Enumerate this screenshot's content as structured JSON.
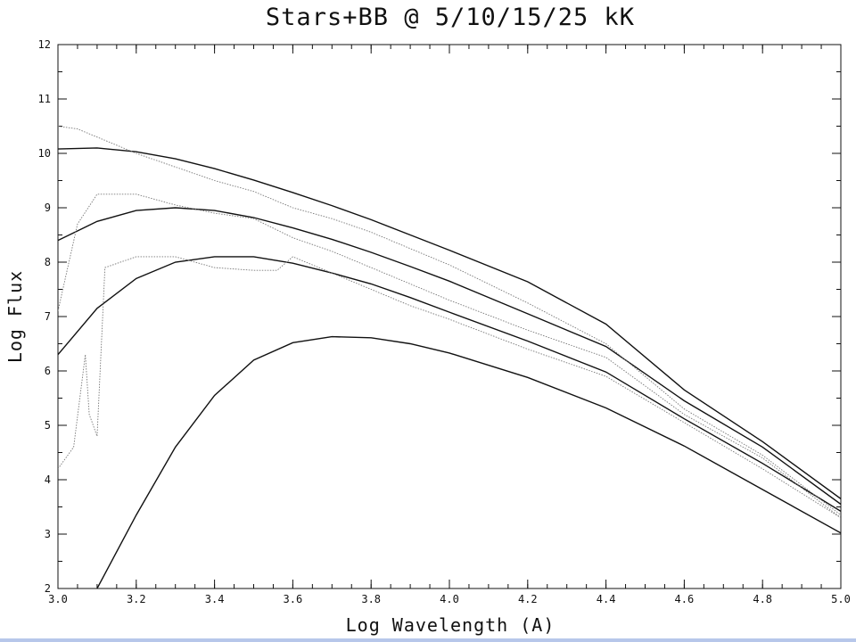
{
  "chart_data": {
    "type": "line",
    "title": "Stars+BB @ 5/10/15/25 kK",
    "xlabel": "Log Wavelength (A)",
    "ylabel": "Log Flux",
    "xlim": [
      3.0,
      5.0
    ],
    "ylim": [
      2,
      12
    ],
    "x_ticks": [
      "3.0",
      "3.2",
      "3.4",
      "3.6",
      "3.8",
      "4.0",
      "4.2",
      "4.4",
      "4.6",
      "4.8",
      "5.0"
    ],
    "y_ticks": [
      "2",
      "3",
      "4",
      "5",
      "6",
      "7",
      "8",
      "9",
      "10",
      "11",
      "12"
    ],
    "grid": false,
    "legend": "none",
    "series": [
      {
        "style": "blackbody",
        "x": [
          3.0,
          3.1,
          3.2,
          3.3,
          3.4,
          3.5,
          3.6,
          3.7,
          3.8,
          3.9,
          4.0,
          4.2,
          4.4,
          4.6,
          4.8,
          5.0
        ],
        "y": [
          10.08,
          10.1,
          10.03,
          9.9,
          9.72,
          9.51,
          9.28,
          9.04,
          8.78,
          8.5,
          8.22,
          7.64,
          6.86,
          5.65,
          4.7,
          3.65
        ]
      },
      {
        "style": "blackbody",
        "x": [
          3.0,
          3.1,
          3.2,
          3.3,
          3.4,
          3.5,
          3.6,
          3.7,
          3.8,
          3.9,
          4.0,
          4.2,
          4.4,
          4.6,
          4.8,
          5.0
        ],
        "y": [
          8.4,
          8.75,
          8.95,
          9.0,
          8.95,
          8.82,
          8.63,
          8.42,
          8.18,
          7.92,
          7.65,
          7.05,
          6.45,
          5.45,
          4.6,
          3.55
        ]
      },
      {
        "style": "blackbody",
        "x": [
          3.0,
          3.1,
          3.2,
          3.3,
          3.4,
          3.5,
          3.6,
          3.7,
          3.8,
          3.9,
          4.0,
          4.2,
          4.4,
          4.6,
          4.8,
          5.0
        ],
        "y": [
          6.3,
          7.15,
          7.7,
          8.0,
          8.1,
          8.1,
          7.98,
          7.8,
          7.6,
          7.35,
          7.08,
          6.55,
          5.98,
          5.12,
          4.3,
          3.42
        ]
      },
      {
        "style": "blackbody",
        "x": [
          3.1,
          3.2,
          3.3,
          3.4,
          3.5,
          3.6,
          3.7,
          3.8,
          3.9,
          4.0,
          4.2,
          4.4,
          4.6,
          4.8,
          5.0
        ],
        "y": [
          2.0,
          3.35,
          4.6,
          5.55,
          6.2,
          6.52,
          6.63,
          6.61,
          6.5,
          6.33,
          5.88,
          5.32,
          4.62,
          3.82,
          3.02
        ]
      },
      {
        "style": "stellar",
        "x": [
          3.0,
          3.05,
          3.1,
          3.2,
          3.3,
          3.4,
          3.5,
          3.6,
          3.7,
          3.8,
          3.9,
          4.0,
          4.2,
          4.4,
          4.6,
          4.8,
          5.0
        ],
        "y": [
          10.5,
          10.45,
          10.3,
          10.0,
          9.75,
          9.5,
          9.3,
          9.0,
          8.8,
          8.55,
          8.25,
          7.95,
          7.25,
          6.5,
          5.3,
          4.45,
          3.35
        ]
      },
      {
        "style": "stellar",
        "x": [
          3.0,
          3.05,
          3.1,
          3.2,
          3.3,
          3.4,
          3.5,
          3.6,
          3.7,
          3.8,
          3.9,
          4.0,
          4.2,
          4.4,
          4.6,
          4.8,
          5.0
        ],
        "y": [
          7.1,
          8.7,
          9.25,
          9.25,
          9.05,
          8.9,
          8.8,
          8.45,
          8.2,
          7.9,
          7.6,
          7.3,
          6.75,
          6.25,
          5.2,
          4.4,
          3.3
        ]
      },
      {
        "style": "stellar",
        "x": [
          3.0,
          3.04,
          3.07,
          3.08,
          3.1,
          3.12,
          3.2,
          3.3,
          3.4,
          3.5,
          3.56,
          3.6,
          3.7,
          3.8,
          3.9,
          4.0,
          4.2,
          4.4,
          4.6,
          4.8,
          5.0
        ],
        "y": [
          4.2,
          4.6,
          6.3,
          5.2,
          4.8,
          7.9,
          8.1,
          8.1,
          7.9,
          7.85,
          7.85,
          8.1,
          7.8,
          7.5,
          7.2,
          6.95,
          6.4,
          5.9,
          5.05,
          4.2,
          3.3
        ]
      }
    ]
  }
}
